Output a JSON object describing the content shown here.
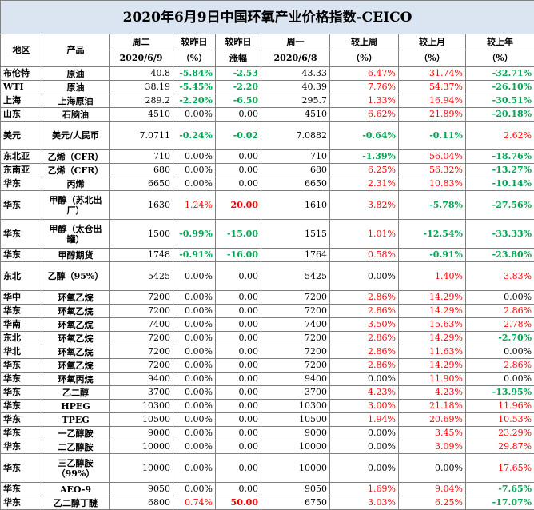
{
  "title": "2020年6月9日中国环氧产业价格指数-CEICO",
  "headers": {
    "region": "地区",
    "product": "产品",
    "tuesday": "周二",
    "tuesday_date": "2020/6/9",
    "vs_yesterday": "较昨日",
    "vs_yesterday_unit": "（%）",
    "vs_yesterday_change": "较昨日",
    "vs_yesterday_change_unit": "涨幅",
    "monday": "周一",
    "monday_date": "2020/6/8",
    "vs_last_week": "较上周",
    "vs_last_week_unit": "（%）",
    "vs_last_month": "较上月",
    "vs_last_month_unit": "（%）",
    "vs_last_year": "较上年",
    "vs_last_year_unit": "（%）"
  },
  "rows": [
    {
      "region": "布伦特",
      "product": "原油",
      "tue": "40.8",
      "pct": "-5.84%",
      "chg": "-2.53",
      "mon": "43.33",
      "wk": "6.47%",
      "mo": "31.74%",
      "yr": "-32.71%"
    },
    {
      "region": "WTI",
      "product": "原油",
      "tue": "38.19",
      "pct": "-5.45%",
      "chg": "-2.20",
      "mon": "40.39",
      "wk": "7.76%",
      "mo": "54.37%",
      "yr": "-26.10%"
    },
    {
      "region": "上海",
      "product": "上海原油",
      "tue": "289.2",
      "pct": "-2.20%",
      "chg": "-6.50",
      "mon": "295.7",
      "wk": "1.33%",
      "mo": "16.94%",
      "yr": "-30.51%"
    },
    {
      "region": "山东",
      "product": "石脑油",
      "tue": "4510",
      "pct": "0.00%",
      "chg": "0.00",
      "mon": "4510",
      "wk": "6.62%",
      "mo": "21.89%",
      "yr": "-20.18%"
    },
    {
      "region": "美元",
      "product": "美元/人民币",
      "tue": "7.0711",
      "pct": "-0.24%",
      "chg": "-0.02",
      "mon": "7.0882",
      "wk": "-0.64%",
      "mo": "-0.11%",
      "yr": "2.62%",
      "tall": true
    },
    {
      "region": "东北亚",
      "product": "乙烯（CFR）",
      "tue": "710",
      "pct": "0.00%",
      "chg": "0.00",
      "mon": "710",
      "wk": "-1.39%",
      "mo": "56.04%",
      "yr": "-18.76%"
    },
    {
      "region": "东南亚",
      "product": "乙烯（CFR）",
      "tue": "680",
      "pct": "0.00%",
      "chg": "0.00",
      "mon": "680",
      "wk": "6.25%",
      "mo": "56.32%",
      "yr": "-13.27%"
    },
    {
      "region": "华东",
      "product": "丙烯",
      "tue": "6650",
      "pct": "0.00%",
      "chg": "0.00",
      "mon": "6650",
      "wk": "2.31%",
      "mo": "10.83%",
      "yr": "-10.14%"
    },
    {
      "region": "华东",
      "product": "甲醇（苏北出厂）",
      "tue": "1630",
      "pct": "1.24%",
      "chg": "20.00",
      "mon": "1610",
      "wk": "3.82%",
      "mo": "-5.78%",
      "yr": "-27.56%",
      "tall": true
    },
    {
      "region": "华东",
      "product": "甲醇（太仓出罐）",
      "tue": "1500",
      "pct": "-0.99%",
      "chg": "-15.00",
      "mon": "1515",
      "wk": "1.01%",
      "mo": "-12.54%",
      "yr": "-33.33%",
      "tall": true
    },
    {
      "region": "华东",
      "product": "甲醇期货",
      "tue": "1748",
      "pct": "-0.91%",
      "chg": "-16.00",
      "mon": "1764",
      "wk": "0.58%",
      "mo": "-0.91%",
      "yr": "-23.80%"
    },
    {
      "region": "东北",
      "product": "乙醇（95%）",
      "tue": "5425",
      "pct": "0.00%",
      "chg": "0.00",
      "mon": "5425",
      "wk": "0.00%",
      "mo": "1.40%",
      "yr": "3.83%",
      "tall": true
    },
    {
      "region": "华中",
      "product": "环氧乙烷",
      "tue": "7200",
      "pct": "0.00%",
      "chg": "0.00",
      "mon": "7200",
      "wk": "2.86%",
      "mo": "14.29%",
      "yr": "0.00%"
    },
    {
      "region": "华东",
      "product": "环氧乙烷",
      "tue": "7200",
      "pct": "0.00%",
      "chg": "0.00",
      "mon": "7200",
      "wk": "2.86%",
      "mo": "14.29%",
      "yr": "2.86%"
    },
    {
      "region": "华南",
      "product": "环氧乙烷",
      "tue": "7400",
      "pct": "0.00%",
      "chg": "0.00",
      "mon": "7400",
      "wk": "3.50%",
      "mo": "15.63%",
      "yr": "2.78%"
    },
    {
      "region": "东北",
      "product": "环氧乙烷",
      "tue": "7200",
      "pct": "0.00%",
      "chg": "0.00",
      "mon": "7200",
      "wk": "2.86%",
      "mo": "14.29%",
      "yr": "-2.70%"
    },
    {
      "region": "华北",
      "product": "环氧乙烷",
      "tue": "7200",
      "pct": "0.00%",
      "chg": "0.00",
      "mon": "7200",
      "wk": "2.86%",
      "mo": "11.63%",
      "yr": "0.00%"
    },
    {
      "region": "华东",
      "product": "环氧乙烷",
      "tue": "7200",
      "pct": "0.00%",
      "chg": "0.00",
      "mon": "7200",
      "wk": "2.86%",
      "mo": "14.29%",
      "yr": "2.86%"
    },
    {
      "region": "华东",
      "product": "环氧丙烷",
      "tue": "9400",
      "pct": "0.00%",
      "chg": "0.00",
      "mon": "9400",
      "wk": "0.00%",
      "mo": "11.90%",
      "yr": "0.00%"
    },
    {
      "region": "华东",
      "product": "乙二醇",
      "tue": "3700",
      "pct": "0.00%",
      "chg": "0.00",
      "mon": "3700",
      "wk": "4.23%",
      "mo": "4.23%",
      "yr": "-13.95%"
    },
    {
      "region": "华东",
      "product": "HPEG",
      "tue": "10300",
      "pct": "0.00%",
      "chg": "0.00",
      "mon": "10300",
      "wk": "3.00%",
      "mo": "21.18%",
      "yr": "11.96%"
    },
    {
      "region": "华东",
      "product": "TPEG",
      "tue": "10500",
      "pct": "0.00%",
      "chg": "0.00",
      "mon": "10500",
      "wk": "1.94%",
      "mo": "20.69%",
      "yr": "10.53%"
    },
    {
      "region": "华东",
      "product": "一乙醇胺",
      "tue": "9000",
      "pct": "0.00%",
      "chg": "0.00",
      "mon": "9000",
      "wk": "0.00%",
      "mo": "3.45%",
      "yr": "23.29%"
    },
    {
      "region": "华东",
      "product": "二乙醇胺",
      "tue": "10000",
      "pct": "0.00%",
      "chg": "0.00",
      "mon": "10000",
      "wk": "0.00%",
      "mo": "3.09%",
      "yr": "29.87%"
    },
    {
      "region": "华东",
      "product": "三乙醇胺（99%）",
      "tue": "10000",
      "pct": "0.00%",
      "chg": "0.00",
      "mon": "10000",
      "wk": "0.00%",
      "mo": "0.00%",
      "yr": "17.65%",
      "tall": true
    },
    {
      "region": "华东",
      "product": "AEO-9",
      "tue": "9050",
      "pct": "0.00%",
      "chg": "0.00",
      "mon": "9050",
      "wk": "1.69%",
      "mo": "9.04%",
      "yr": "-7.65%"
    },
    {
      "region": "华东",
      "product": "乙二醇丁醚",
      "tue": "6800",
      "pct": "0.74%",
      "chg": "50.00",
      "mon": "6750",
      "wk": "3.03%",
      "mo": "6.25%",
      "yr": "-17.07%"
    }
  ]
}
